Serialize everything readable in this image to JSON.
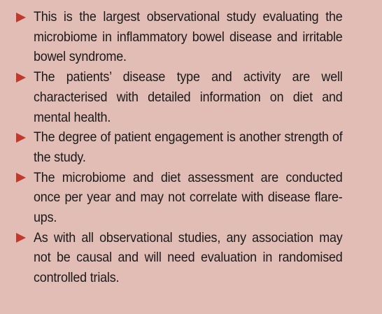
{
  "colors": {
    "background": "#e2bdb5",
    "bullet": "#c0392b",
    "text": "#1a1a1a"
  },
  "bullet_icon": "right-pointing-triangle",
  "bullets": [
    "This is the largest observational study evaluating the microbiome in inflammatory bowel disease and irri­table bowel syndrome.",
    "The patients’ disease type and activity are well characterised with detailed information on diet and mental health.",
    "The degree of patient engagement is another strength of the study.",
    "The microbiome and diet assessment are conducted once per year and may not correlate with disease flare-ups.",
    "As with all observational studies, any association may not be causal and will need evaluation in ran­domised controlled trials."
  ]
}
